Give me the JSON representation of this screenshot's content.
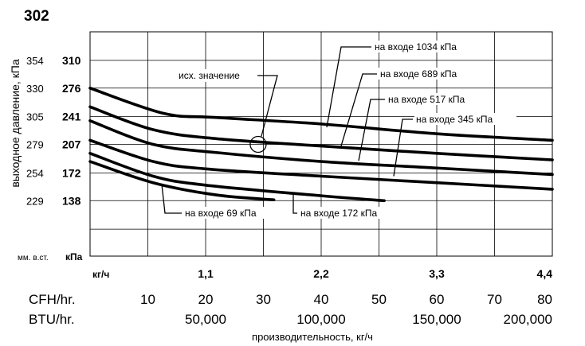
{
  "figure_number": "302",
  "chart_data": {
    "type": "line",
    "ylabel": "выходное давление, кПа",
    "xlabel": "производительность, кг/ч",
    "unit_labels": {
      "mm_wc": "мм. в.ст.",
      "kpa": "кПа",
      "kg_per_h": "кг/ч"
    },
    "y_kpa_ticks": [
      "310",
      "276",
      "241",
      "207",
      "172",
      "138"
    ],
    "y_mmwc_ticks": [
      "354",
      "330",
      "305",
      "279",
      "254",
      "229"
    ],
    "x_kg_ticks": [
      "1,1",
      "2,2",
      "3,3",
      "4,4"
    ],
    "cfh": {
      "label": "CFH/hr.",
      "ticks": [
        "10",
        "20",
        "30",
        "40",
        "50",
        "60",
        "70",
        "80"
      ]
    },
    "btu": {
      "label": "BTU/hr.",
      "ticks": [
        "50,000",
        "100,000",
        "150,000",
        "200,000"
      ]
    },
    "xlim": [
      0,
      4.4
    ],
    "ylim": [
      70,
      345
    ],
    "grid": true,
    "series": [
      {
        "name": "на входе 1034 кПа",
        "x": [
          0,
          0.7,
          1.2,
          2.2,
          3.3,
          4.4
        ],
        "y": [
          276,
          245,
          240,
          232,
          220,
          212
        ]
      },
      {
        "name": "на входе 689 кПа",
        "x": [
          0,
          0.6,
          1.2,
          2.2,
          3.3,
          4.4
        ],
        "y": [
          253,
          225,
          214,
          205,
          196,
          188
        ]
      },
      {
        "name": "на входе 517 кПа",
        "x": [
          0,
          0.6,
          1.2,
          2.2,
          3.3,
          4.4
        ],
        "y": [
          236,
          207,
          197,
          186,
          178,
          170
        ]
      },
      {
        "name": "на входе 345 кПа",
        "x": [
          0,
          0.6,
          1.1,
          2.2,
          3.3,
          4.4
        ],
        "y": [
          212,
          186,
          177,
          168,
          160,
          152
        ]
      },
      {
        "name": "на входе 172 кПа",
        "x": [
          0,
          0.6,
          1.1,
          2.2,
          2.8
        ],
        "y": [
          196,
          168,
          157,
          144,
          138
        ]
      },
      {
        "name": "на входе 69 кПа",
        "x": [
          0,
          0.6,
          1.2,
          1.75
        ],
        "y": [
          186,
          160,
          145,
          139
        ]
      }
    ],
    "annotations": [
      {
        "text": "исх. значение",
        "x": 1.6,
        "y": 207
      }
    ]
  }
}
